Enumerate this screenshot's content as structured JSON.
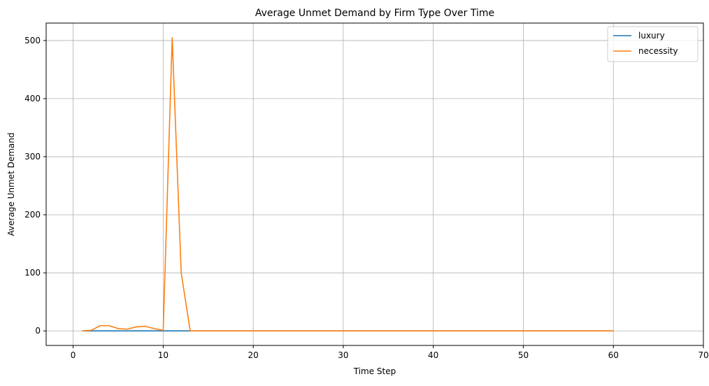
{
  "chart_data": {
    "type": "line",
    "title": "Average Unmet Demand by Firm Type Over Time",
    "xlabel": "Time Step",
    "ylabel": "Average Unmet Demand",
    "xlim": [
      -3,
      70
    ],
    "ylim": [
      -25,
      530
    ],
    "xticks": [
      0,
      10,
      20,
      30,
      40,
      50,
      60,
      70
    ],
    "yticks": [
      0,
      100,
      200,
      300,
      400,
      500
    ],
    "grid": true,
    "legend_position": "top-right",
    "series": [
      {
        "name": "luxury",
        "color": "#1f77b4",
        "x": [
          1,
          2,
          3,
          4,
          5,
          6,
          7,
          8,
          9,
          10,
          11,
          12,
          13,
          14,
          15,
          16,
          17,
          18,
          19,
          20,
          21,
          22,
          23,
          24,
          25,
          26,
          27,
          28,
          29,
          30,
          31,
          32,
          33,
          34,
          35,
          36,
          37,
          38,
          39,
          40,
          41,
          42,
          43,
          44,
          45,
          46,
          47,
          48,
          49,
          50,
          51,
          52,
          53,
          54,
          55,
          56,
          57,
          58,
          59,
          60
        ],
        "y": [
          0,
          0,
          0,
          0,
          0,
          0,
          0,
          0,
          0,
          0,
          0,
          0,
          0,
          0,
          0,
          0,
          0,
          0,
          0,
          0,
          0,
          0,
          0,
          0,
          0,
          0,
          0,
          0,
          0,
          0,
          0,
          0,
          0,
          0,
          0,
          0,
          0,
          0,
          0,
          0,
          0,
          0,
          0,
          0,
          0,
          0,
          0,
          0,
          0,
          0,
          0,
          0,
          0,
          0,
          0,
          0,
          0,
          0,
          0,
          0
        ]
      },
      {
        "name": "necessity",
        "color": "#ff7f0e",
        "x": [
          1,
          2,
          3,
          4,
          5,
          6,
          7,
          8,
          9,
          10,
          11,
          12,
          13,
          14,
          15,
          16,
          17,
          18,
          19,
          20,
          21,
          22,
          23,
          24,
          25,
          26,
          27,
          28,
          29,
          30,
          31,
          32,
          33,
          34,
          35,
          36,
          37,
          38,
          39,
          40,
          41,
          42,
          43,
          44,
          45,
          46,
          47,
          48,
          49,
          50,
          51,
          52,
          53,
          54,
          55,
          56,
          57,
          58,
          59,
          60
        ],
        "y": [
          0,
          1,
          9,
          9,
          4,
          3,
          7,
          8,
          4,
          1,
          505,
          100,
          0,
          0,
          0,
          0,
          0,
          0,
          0,
          0,
          0,
          0,
          0,
          0,
          0,
          0,
          0,
          0,
          0,
          0,
          0,
          0,
          0,
          0,
          0,
          0,
          0,
          0,
          0,
          0,
          0,
          0,
          0,
          0,
          0,
          0,
          0,
          0,
          0,
          0,
          0,
          0,
          0,
          0,
          0,
          0,
          0,
          0,
          0,
          0
        ]
      }
    ]
  }
}
